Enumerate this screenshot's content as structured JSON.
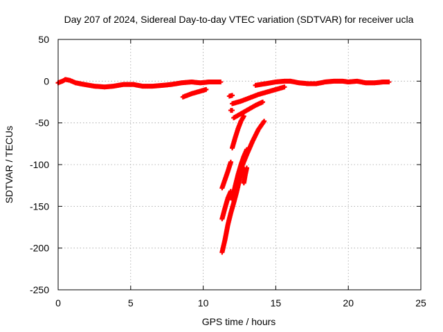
{
  "chart_data": {
    "type": "scatter",
    "title": "Day 207 of 2024, Sidereal Day-to-day VTEC variation (SDTVAR) for receiver ucla",
    "xlabel": "GPS time / hours",
    "ylabel": "SDTVAR / TECUs",
    "xlim": [
      0,
      25
    ],
    "ylim": [
      -250,
      50
    ],
    "x_ticks": [
      0,
      5,
      10,
      15,
      20,
      25
    ],
    "y_ticks": [
      50,
      0,
      -50,
      -100,
      -150,
      -200,
      -250
    ],
    "x_tick_labels": [
      "0",
      "5",
      "10",
      "15",
      "20",
      "25"
    ],
    "y_tick_labels": [
      "50",
      "0",
      "-50",
      "-100",
      "-150",
      "-200",
      "-250"
    ],
    "grid": true,
    "marker": "plus",
    "color": "#ff0000",
    "segments": [
      {
        "points": [
          [
            0.0,
            -2
          ],
          [
            0.3,
            0
          ],
          [
            0.5,
            2
          ],
          [
            0.8,
            1
          ],
          [
            1.2,
            -2
          ],
          [
            1.8,
            -4
          ],
          [
            2.5,
            -6
          ],
          [
            3.2,
            -7
          ],
          [
            3.8,
            -6
          ],
          [
            4.5,
            -4
          ],
          [
            5.2,
            -4
          ],
          [
            5.8,
            -6
          ],
          [
            6.5,
            -6
          ],
          [
            7.2,
            -5
          ],
          [
            7.8,
            -4
          ],
          [
            8.5,
            -2
          ],
          [
            9.2,
            -1
          ],
          [
            9.8,
            -2
          ],
          [
            10.4,
            -1
          ],
          [
            10.8,
            -1
          ],
          [
            11.2,
            -1
          ]
        ]
      },
      {
        "points": [
          [
            8.6,
            -19
          ],
          [
            9.2,
            -15
          ],
          [
            9.8,
            -12
          ],
          [
            10.2,
            -10
          ]
        ]
      },
      {
        "points": [
          [
            11.8,
            -18
          ],
          [
            12.0,
            -17
          ]
        ]
      },
      {
        "points": [
          [
            11.9,
            -35
          ],
          [
            12.0,
            -35
          ]
        ]
      },
      {
        "points": [
          [
            12.0,
            -27
          ],
          [
            12.6,
            -24
          ],
          [
            13.2,
            -20
          ],
          [
            13.8,
            -16
          ],
          [
            14.4,
            -13
          ],
          [
            15.0,
            -10
          ],
          [
            15.6,
            -7
          ]
        ]
      },
      {
        "points": [
          [
            12.1,
            -44
          ],
          [
            12.6,
            -39
          ],
          [
            13.1,
            -34
          ],
          [
            13.6,
            -29
          ],
          [
            14.1,
            -25
          ]
        ]
      },
      {
        "points": [
          [
            13.6,
            -5
          ],
          [
            14.3,
            -3
          ],
          [
            15.0,
            -1
          ],
          [
            15.6,
            0
          ],
          [
            16.0,
            0
          ]
        ]
      },
      {
        "points": [
          [
            16.0,
            0
          ],
          [
            16.6,
            -2
          ],
          [
            17.2,
            -3
          ],
          [
            17.8,
            -3
          ],
          [
            18.4,
            -1
          ],
          [
            19.0,
            0
          ],
          [
            19.6,
            0
          ],
          [
            20.0,
            -1
          ],
          [
            20.6,
            0
          ],
          [
            21.2,
            -2
          ],
          [
            21.8,
            -2
          ],
          [
            22.4,
            -1
          ],
          [
            22.8,
            -1
          ]
        ]
      },
      {
        "points": [
          [
            12.0,
            -80
          ],
          [
            12.2,
            -68
          ],
          [
            12.4,
            -57
          ],
          [
            12.6,
            -48
          ],
          [
            12.8,
            -42
          ]
        ]
      },
      {
        "points": [
          [
            11.3,
            -128
          ],
          [
            11.5,
            -118
          ],
          [
            11.7,
            -108
          ],
          [
            11.9,
            -97
          ]
        ]
      },
      {
        "points": [
          [
            11.3,
            -165
          ],
          [
            11.5,
            -152
          ],
          [
            11.7,
            -140
          ],
          [
            11.9,
            -132
          ]
        ]
      },
      {
        "points": [
          [
            11.3,
            -205
          ],
          [
            11.5,
            -190
          ],
          [
            11.7,
            -172
          ],
          [
            11.9,
            -158
          ],
          [
            12.1,
            -146
          ],
          [
            12.3,
            -133
          ],
          [
            12.5,
            -118
          ],
          [
            12.7,
            -103
          ]
        ]
      },
      {
        "points": [
          [
            12.0,
            -142
          ],
          [
            12.2,
            -126
          ],
          [
            12.4,
            -112
          ],
          [
            12.6,
            -100
          ],
          [
            12.8,
            -90
          ],
          [
            13.0,
            -82
          ]
        ]
      },
      {
        "points": [
          [
            12.3,
            -120
          ],
          [
            12.6,
            -105
          ],
          [
            13.0,
            -88
          ],
          [
            13.4,
            -72
          ],
          [
            13.8,
            -58
          ],
          [
            14.2,
            -48
          ]
        ]
      },
      {
        "points": [
          [
            12.8,
            -122
          ],
          [
            12.9,
            -112
          ],
          [
            13.0,
            -104
          ]
        ]
      }
    ]
  }
}
